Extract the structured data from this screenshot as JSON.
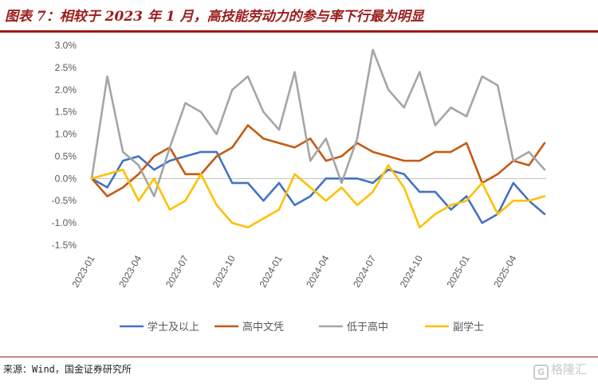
{
  "title": "图表 7：相较于 2023 年 1 月，高技能劳动力的参与率下行最为明显",
  "source": "来源：Wind，国金证券研究所",
  "watermark": {
    "icon": "G",
    "text": "格隆汇"
  },
  "chart_data": {
    "type": "line",
    "title": "",
    "xlabel": "",
    "ylabel": "",
    "ylim": [
      -0.015,
      0.03
    ],
    "yticks": [
      -0.015,
      -0.01,
      -0.005,
      0.0,
      0.005,
      0.01,
      0.015,
      0.02,
      0.025,
      0.03
    ],
    "ytick_labels": [
      "-1.5%",
      "-1.0%",
      "-0.5%",
      "0.0%",
      "0.5%",
      "1.0%",
      "1.5%",
      "2.0%",
      "2.5%",
      "3.0%"
    ],
    "x": [
      "2023-01",
      "2023-02",
      "2023-03",
      "2023-04",
      "2023-05",
      "2023-06",
      "2023-07",
      "2023-08",
      "2023-09",
      "2023-10",
      "2023-11",
      "2023-12",
      "2024-01",
      "2024-02",
      "2024-03",
      "2024-04",
      "2024-05",
      "2024-06",
      "2024-07",
      "2024-08",
      "2024-09",
      "2024-10",
      "2024-11",
      "2024-12",
      "2025-01",
      "2025-02",
      "2025-03",
      "2025-04",
      "2025-05",
      "2025-06"
    ],
    "xtick_labels": [
      {
        "index": 0,
        "label": "2023-01"
      },
      {
        "index": 3,
        "label": "2023-04"
      },
      {
        "index": 6,
        "label": "2023-07"
      },
      {
        "index": 9,
        "label": "2023-10"
      },
      {
        "index": 12,
        "label": "2024-01"
      },
      {
        "index": 15,
        "label": "2024-04"
      },
      {
        "index": 18,
        "label": "2024-07"
      },
      {
        "index": 21,
        "label": "2024-10"
      },
      {
        "index": 24,
        "label": "2025-01"
      },
      {
        "index": 27,
        "label": "2025-04"
      }
    ],
    "grid": false,
    "legend": "bottom",
    "series": [
      {
        "name": "学士及以上",
        "color": "#4472c4",
        "values": [
          0.0,
          -0.002,
          0.004,
          0.005,
          0.002,
          0.004,
          0.005,
          0.006,
          0.006,
          -0.001,
          -0.001,
          -0.005,
          -0.001,
          -0.006,
          -0.004,
          0.0,
          0.0,
          0.0,
          -0.001,
          0.002,
          0.001,
          -0.003,
          -0.003,
          -0.007,
          -0.004,
          -0.01,
          -0.008,
          -0.001,
          -0.005,
          -0.008
        ]
      },
      {
        "name": "高中文凭",
        "color": "#c55a11",
        "values": [
          0.0,
          -0.004,
          -0.002,
          0.001,
          0.005,
          0.007,
          0.001,
          0.001,
          0.005,
          0.007,
          0.012,
          0.009,
          0.008,
          0.007,
          0.009,
          0.004,
          0.005,
          0.008,
          0.006,
          0.005,
          0.004,
          0.004,
          0.006,
          0.006,
          0.008,
          -0.001,
          0.001,
          0.004,
          0.003,
          0.008
        ]
      },
      {
        "name": "低于高中",
        "color": "#a5a5a5",
        "values": [
          0.0,
          0.023,
          0.006,
          0.003,
          -0.004,
          0.007,
          0.017,
          0.015,
          0.01,
          0.02,
          0.023,
          0.015,
          0.011,
          0.024,
          0.004,
          0.009,
          -0.001,
          0.009,
          0.029,
          0.02,
          0.016,
          0.024,
          0.012,
          0.016,
          0.014,
          0.023,
          0.021,
          0.004,
          0.006,
          0.002
        ]
      },
      {
        "name": "副学士",
        "color": "#ffc000",
        "values": [
          0.0,
          0.001,
          0.002,
          -0.005,
          0.0,
          -0.007,
          -0.005,
          0.001,
          -0.006,
          -0.01,
          -0.011,
          -0.009,
          -0.007,
          0.001,
          -0.002,
          -0.005,
          -0.002,
          -0.006,
          -0.003,
          0.003,
          -0.002,
          -0.011,
          -0.008,
          -0.006,
          -0.005,
          -0.001,
          -0.008,
          -0.005,
          -0.005,
          -0.004
        ]
      }
    ]
  }
}
